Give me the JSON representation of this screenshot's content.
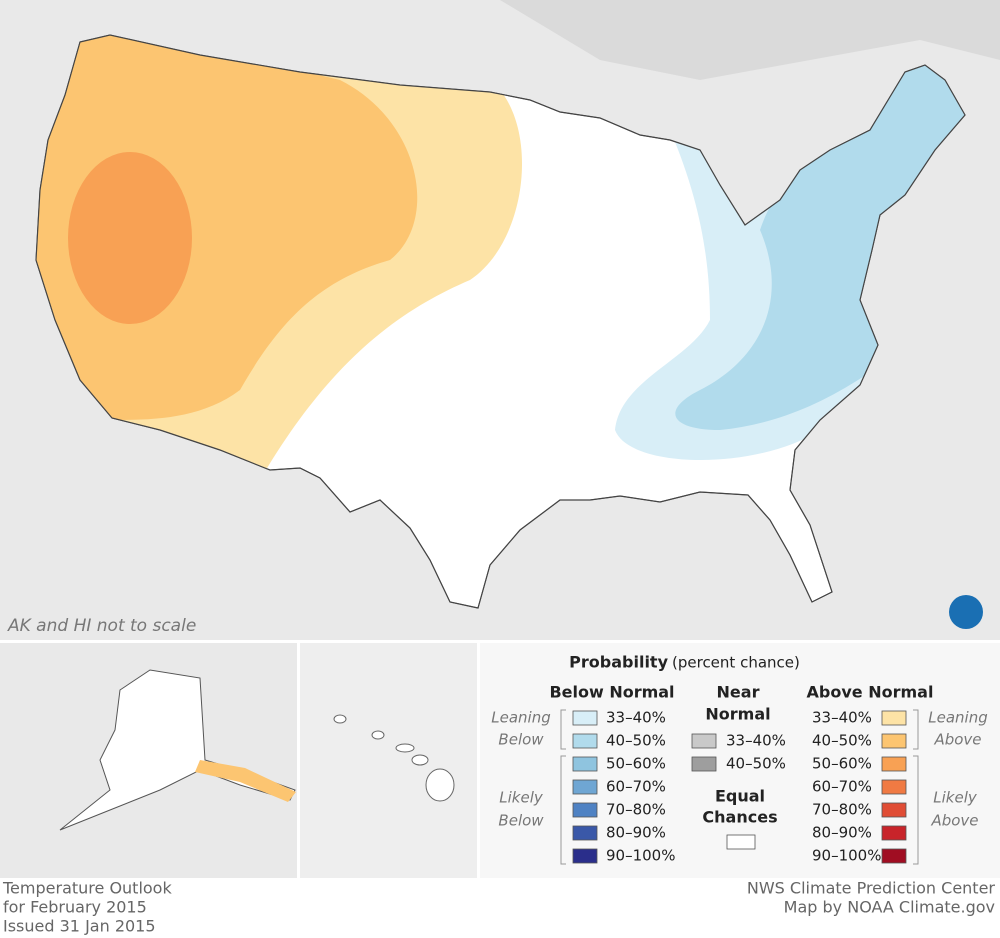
{
  "map": {
    "note": "AK and HI not to scale"
  },
  "legend": {
    "title": "Probability",
    "subtitle": "(percent chance)",
    "groups": [
      {
        "heading": [
          "Below Normal"
        ],
        "leaning": [
          "Leaning",
          "Below"
        ],
        "likely": [
          "Likely",
          "Below"
        ],
        "bins": [
          {
            "label": "33–40%",
            "color": "#d8eef7"
          },
          {
            "label": "40–50%",
            "color": "#b1dbec"
          },
          {
            "label": "50–60%",
            "color": "#8fc4df"
          },
          {
            "label": "60–70%",
            "color": "#6fa6d3"
          },
          {
            "label": "70–80%",
            "color": "#4f82c3"
          },
          {
            "label": "80–90%",
            "color": "#3a58a8"
          },
          {
            "label": "90–100%",
            "color": "#2a2e8b"
          }
        ]
      },
      {
        "heading": [
          "Near",
          "Normal"
        ],
        "bins": [
          {
            "label": "33–40%",
            "color": "#c9c9c9"
          },
          {
            "label": "40–50%",
            "color": "#9e9e9e"
          }
        ]
      },
      {
        "heading": [
          "Above Normal"
        ],
        "leaning": [
          "Leaning",
          "Above"
        ],
        "likely": [
          "Likely",
          "Above"
        ],
        "bins": [
          {
            "label": "33–40%",
            "color": "#fde3a6"
          },
          {
            "label": "40–50%",
            "color": "#fcc571"
          },
          {
            "label": "50–60%",
            "color": "#f8a154"
          },
          {
            "label": "60–70%",
            "color": "#f07a43"
          },
          {
            "label": "70–80%",
            "color": "#e04d35"
          },
          {
            "label": "80–90%",
            "color": "#c8242a"
          },
          {
            "label": "90–100%",
            "color": "#a00d22"
          }
        ]
      }
    ],
    "equal_chances": [
      "Equal",
      "Chances"
    ]
  },
  "footer": {
    "left": [
      "Temperature Outlook",
      "for February 2015",
      "Issued 31 Jan 2015"
    ],
    "right": [
      "NWS Climate Prediction Center",
      "Map by NOAA Climate.gov"
    ]
  }
}
